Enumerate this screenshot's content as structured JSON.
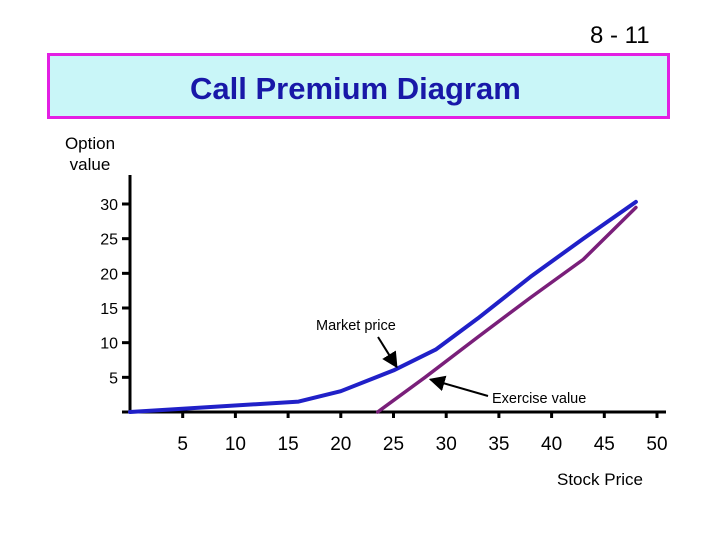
{
  "slide_number": "8 - 11",
  "title": "Call Premium Diagram",
  "colors": {
    "title_text": "#1818a8",
    "title_bg": "#c9f6f8",
    "title_border": "#e31fe3",
    "market_price_line": "#2020c8",
    "exercise_value_line": "#7a1f7a",
    "axis": "#000000"
  },
  "chart_data": {
    "type": "line",
    "title": "Call Premium Diagram",
    "xlabel": "Stock Price",
    "ylabel": "Option value",
    "x_ticks": [
      5,
      10,
      15,
      20,
      25,
      30,
      35,
      40,
      45,
      50
    ],
    "y_ticks": [
      5,
      10,
      15,
      20,
      25,
      30
    ],
    "xlim": [
      0,
      50
    ],
    "ylim": [
      0,
      30
    ],
    "grid": false,
    "series": [
      {
        "key": "market",
        "x": [
          0,
          16,
          20,
          25,
          29,
          33,
          38,
          43,
          48
        ],
        "y": [
          0,
          1.5,
          3,
          6,
          9,
          13.5,
          19.5,
          25,
          30.3
        ]
      },
      {
        "key": "exercise",
        "x": [
          23.5,
          28,
          33,
          38,
          43,
          48
        ],
        "y": [
          0,
          5,
          10.8,
          16.5,
          22,
          29.5
        ]
      }
    ],
    "annotations": [
      {
        "text": "Market price",
        "target_x": 25.3,
        "target_y": 6.5
      },
      {
        "text": "Exercise value",
        "target_x": 28.5,
        "target_y": 4.7
      }
    ]
  }
}
